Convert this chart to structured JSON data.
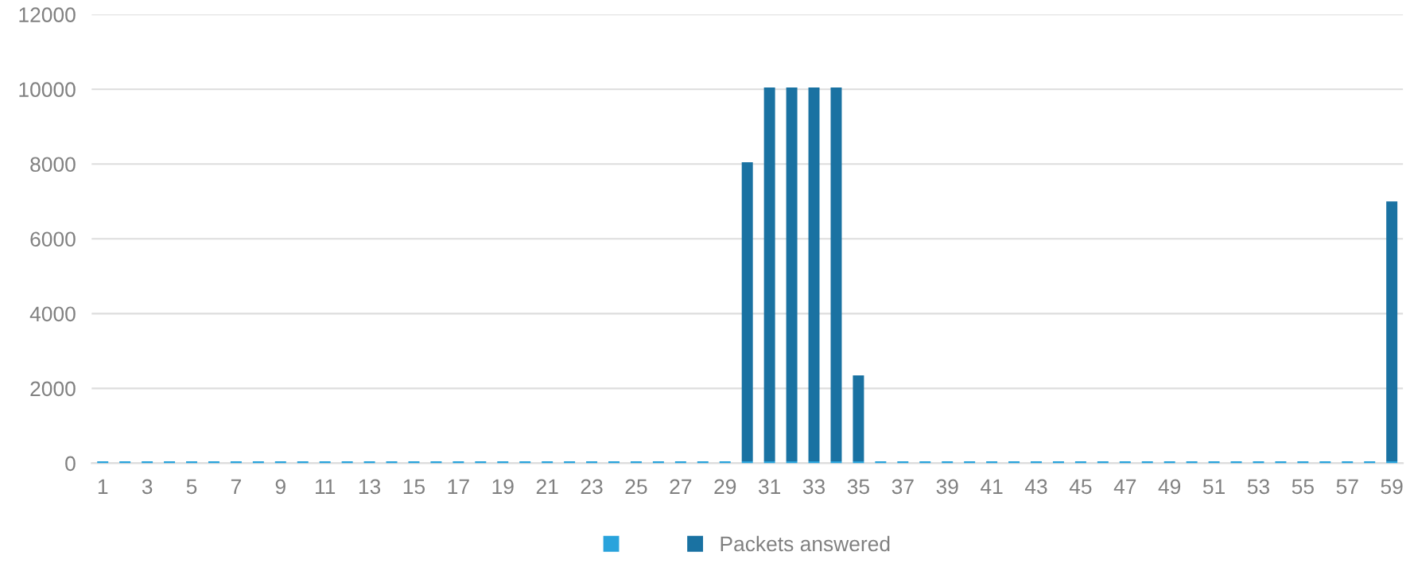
{
  "chart_data": {
    "type": "bar",
    "stacked": true,
    "categories": [
      "1",
      null,
      "3",
      null,
      "5",
      null,
      "7",
      null,
      "9",
      null,
      "11",
      null,
      "13",
      null,
      "15",
      null,
      "17",
      null,
      "19",
      null,
      "21",
      null,
      "23",
      null,
      "25",
      null,
      "27",
      null,
      "29",
      null,
      "31",
      null,
      "33",
      null,
      "35",
      null,
      "37",
      null,
      "39",
      null,
      "41",
      null,
      "43",
      null,
      "45",
      null,
      "47",
      null,
      "49",
      null,
      "51",
      null,
      "53",
      null,
      "55",
      null,
      "57",
      null,
      "59"
    ],
    "series": [
      {
        "color": "#29a3dc",
        "values": [
          50,
          50,
          50,
          50,
          50,
          50,
          50,
          50,
          50,
          50,
          50,
          50,
          50,
          50,
          50,
          50,
          50,
          50,
          50,
          50,
          50,
          50,
          50,
          50,
          50,
          50,
          50,
          50,
          50,
          50,
          50,
          50,
          50,
          50,
          50,
          50,
          50,
          50,
          50,
          50,
          50,
          50,
          50,
          50,
          50,
          50,
          50,
          50,
          50,
          50,
          50,
          50,
          50,
          50,
          50,
          50,
          50,
          50,
          50
        ]
      },
      {
        "name": "Packets answered",
        "color": "#1a72a2",
        "values": [
          null,
          null,
          null,
          null,
          null,
          null,
          null,
          null,
          null,
          null,
          null,
          null,
          null,
          null,
          null,
          null,
          null,
          null,
          null,
          null,
          null,
          null,
          null,
          null,
          null,
          null,
          null,
          null,
          null,
          8000,
          10000,
          10000,
          10000,
          10000,
          2300,
          null,
          null,
          null,
          null,
          null,
          null,
          null,
          null,
          null,
          null,
          null,
          null,
          null,
          null,
          null,
          null,
          null,
          null,
          null,
          null,
          null,
          null,
          null,
          6950
        ]
      }
    ],
    "ylim": [
      0,
      12000
    ],
    "yticks": [
      0,
      2000,
      4000,
      6000,
      8000,
      10000,
      12000
    ],
    "grid": "y",
    "legend": "bottom"
  }
}
